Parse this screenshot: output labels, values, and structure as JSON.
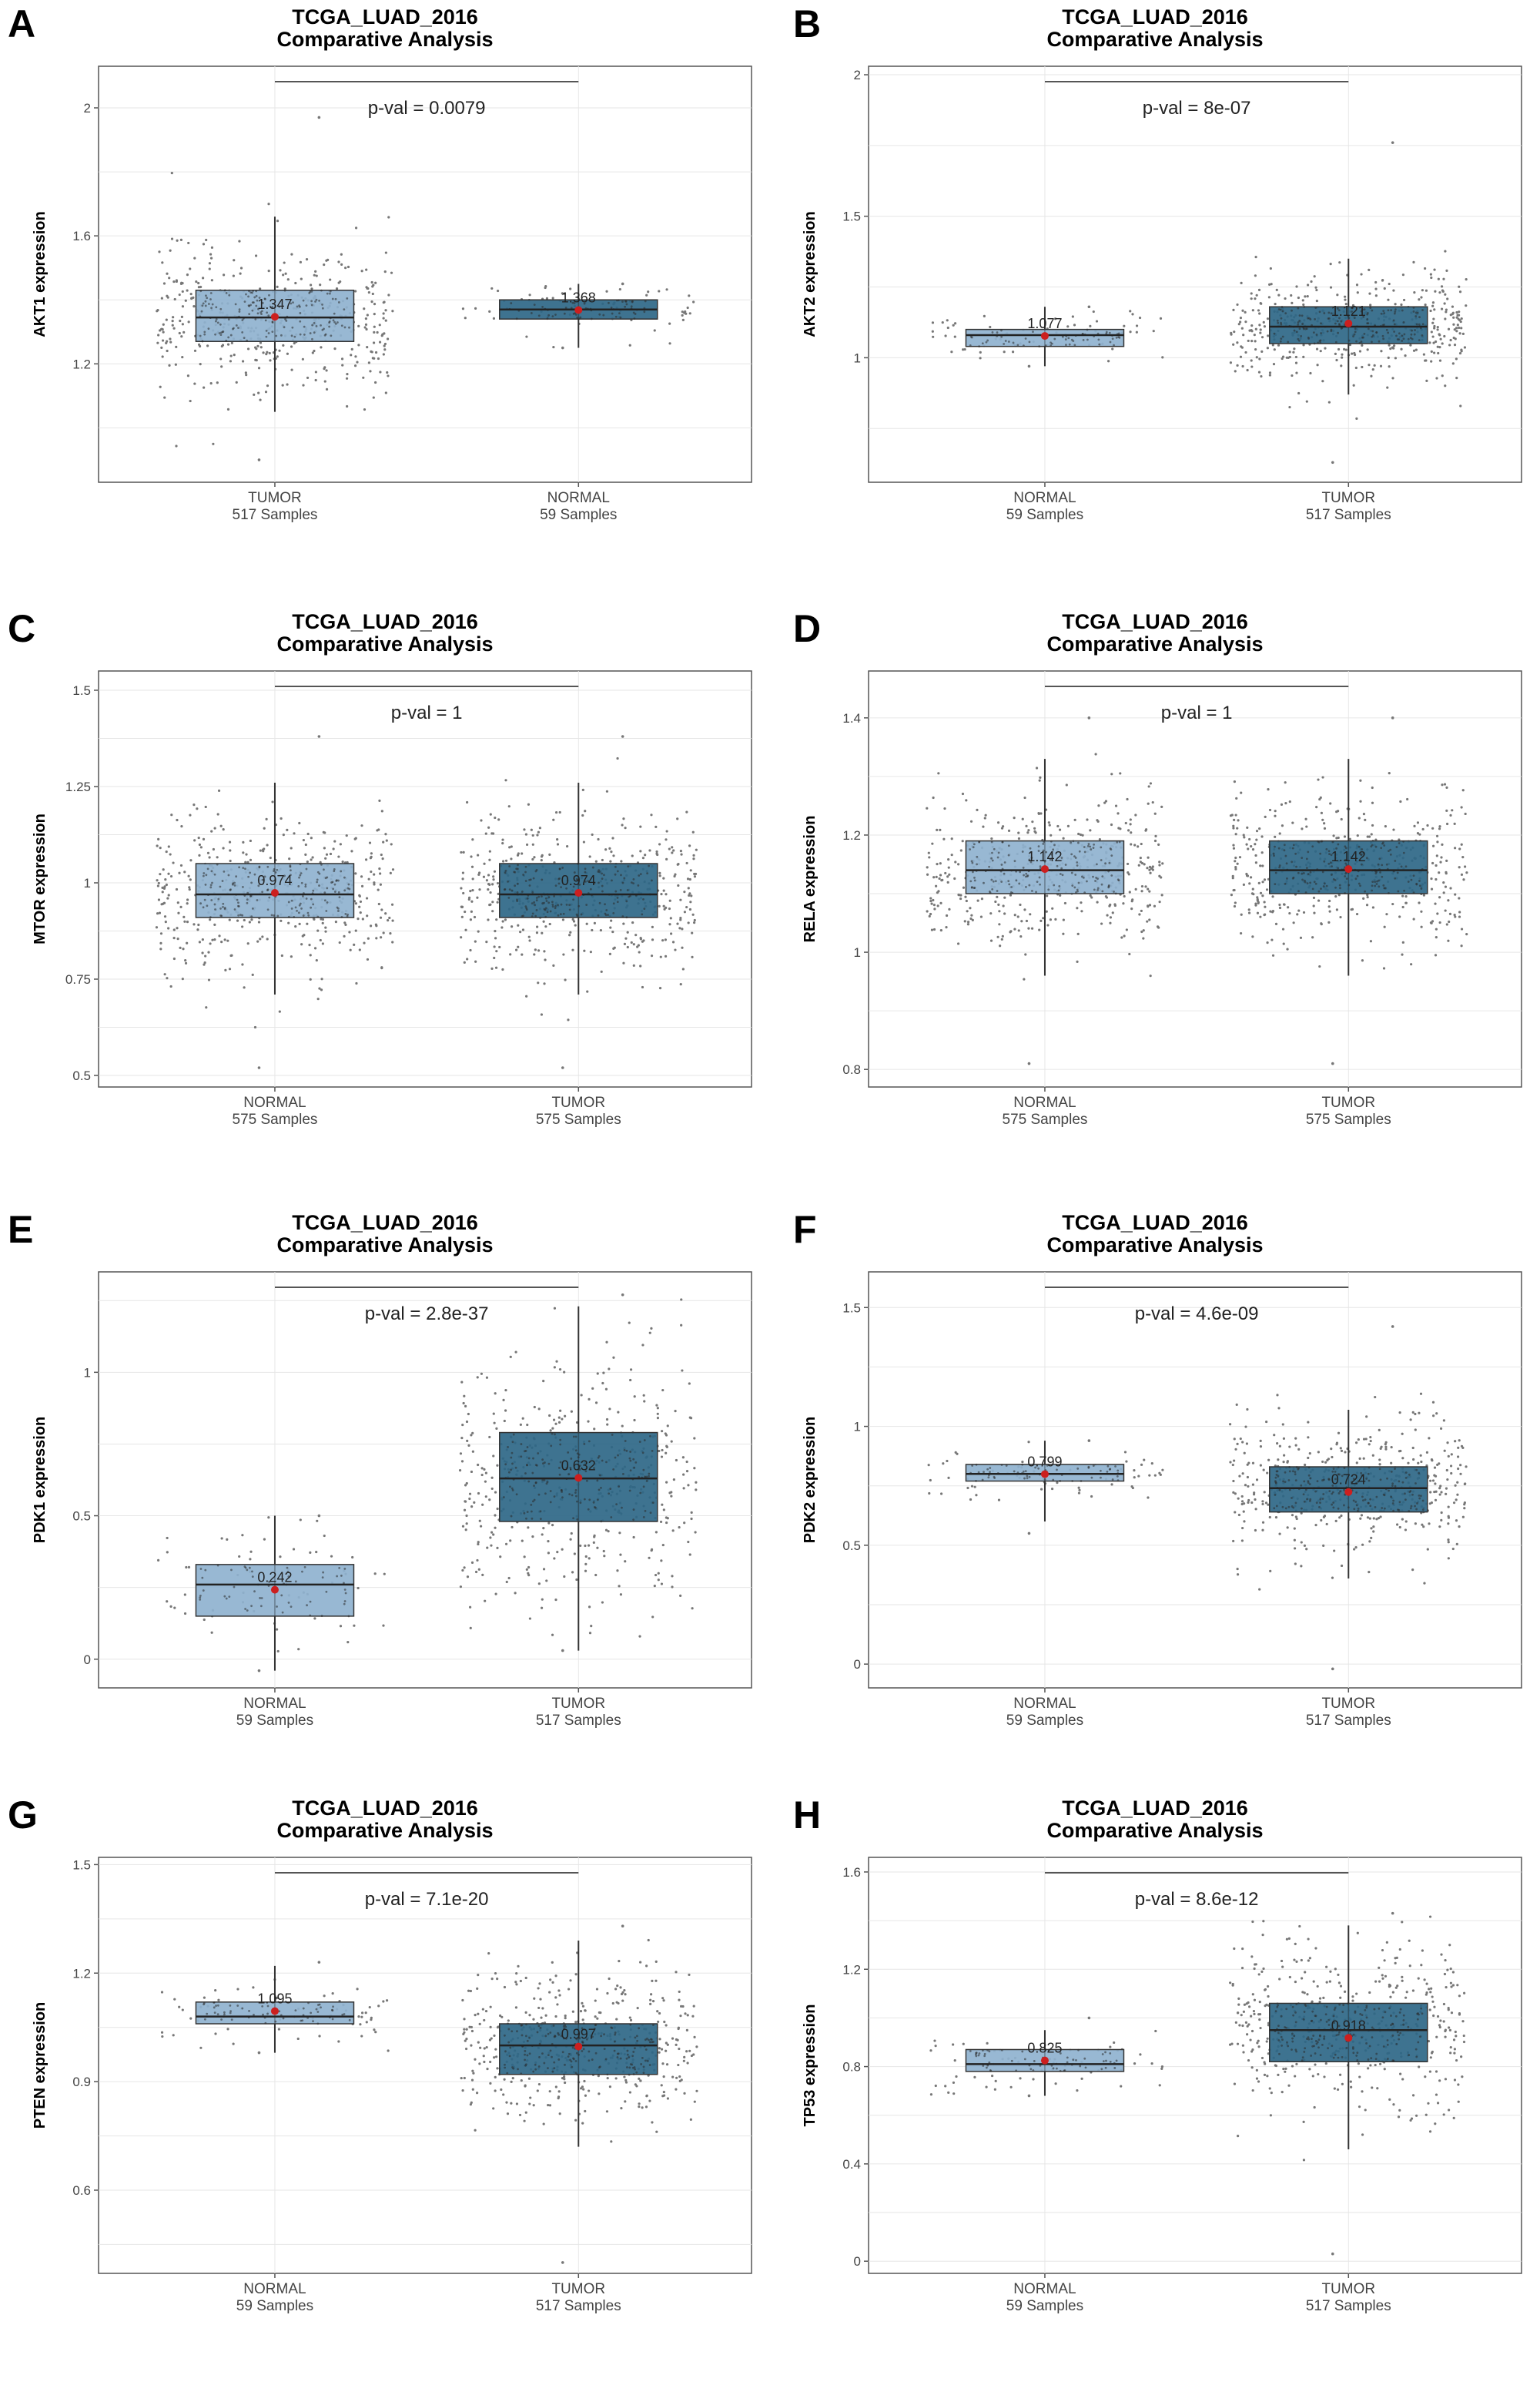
{
  "figure": {
    "panels": [
      {
        "letter": "A",
        "title": "TCGA_LUAD_2016",
        "subtitle": "Comparative Analysis",
        "pval": "p-val = 0.0079",
        "ylabel": "AKT1 expression",
        "groups": [
          "TUMOR",
          "NORMAL"
        ],
        "counts": [
          "517  Samples",
          "59  Samples"
        ]
      },
      {
        "letter": "B",
        "title": "TCGA_LUAD_2016",
        "subtitle": "Comparative Analysis",
        "pval": "p-val = 8e-07",
        "ylabel": "AKT2 expression",
        "groups": [
          "NORMAL",
          "TUMOR"
        ],
        "counts": [
          "59  Samples",
          "517  Samples"
        ]
      },
      {
        "letter": "C",
        "title": "TCGA_LUAD_2016",
        "subtitle": "Comparative Analysis",
        "pval": "p-val = 1",
        "ylabel": "MTOR expression",
        "groups": [
          "NORMAL",
          "TUMOR"
        ],
        "counts": [
          "575  Samples",
          "575  Samples"
        ]
      },
      {
        "letter": "D",
        "title": "TCGA_LUAD_2016",
        "subtitle": "Comparative Analysis",
        "pval": "p-val = 1",
        "ylabel": "RELA expression",
        "groups": [
          "NORMAL",
          "TUMOR"
        ],
        "counts": [
          "575  Samples",
          "575  Samples"
        ]
      },
      {
        "letter": "E",
        "title": "TCGA_LUAD_2016",
        "subtitle": "Comparative Analysis",
        "pval": "p-val = 2.8e-37",
        "ylabel": "PDK1 expression",
        "groups": [
          "NORMAL",
          "TUMOR"
        ],
        "counts": [
          "59  Samples",
          "517  Samples"
        ]
      },
      {
        "letter": "F",
        "title": "TCGA_LUAD_2016",
        "subtitle": "Comparative Analysis",
        "pval": "p-val = 4.6e-09",
        "ylabel": "PDK2 expression",
        "groups": [
          "NORMAL",
          "TUMOR"
        ],
        "counts": [
          "59  Samples",
          "517  Samples"
        ]
      },
      {
        "letter": "G",
        "title": "TCGA_LUAD_2016",
        "subtitle": "Comparative Analysis",
        "pval": "p-val = 7.1e-20",
        "ylabel": "PTEN expression",
        "groups": [
          "NORMAL",
          "TUMOR"
        ],
        "counts": [
          "59  Samples",
          "517  Samples"
        ]
      },
      {
        "letter": "H",
        "title": "TCGA_LUAD_2016",
        "subtitle": "Comparative Analysis",
        "pval": "p-val = 8.6e-12",
        "ylabel": "TP53 expression",
        "groups": [
          "NORMAL",
          "TUMOR"
        ],
        "counts": [
          "59  Samples",
          "517  Samples"
        ]
      }
    ]
  },
  "chart_data": [
    {
      "type": "box",
      "panel": "A",
      "ylabel": "AKT1 expression",
      "yticks": [
        1.2,
        1.6,
        2.0
      ],
      "ylim": [
        0.83,
        2.13
      ],
      "grid": true,
      "colors": [
        "#8fb2cf",
        "#2e6787"
      ],
      "boxes": [
        {
          "group": "TUMOR",
          "n": 517,
          "q1": 1.27,
          "median": 1.345,
          "q3": 1.43,
          "whisker_low": 1.05,
          "whisker_high": 1.66,
          "mean": 1.347,
          "mean_label": "1.347",
          "point_min": 0.9,
          "point_max": 1.97
        },
        {
          "group": "NORMAL",
          "n": 59,
          "q1": 1.34,
          "median": 1.37,
          "q3": 1.4,
          "whisker_low": 1.25,
          "whisker_high": 1.45,
          "mean": 1.368,
          "mean_label": "1.368",
          "point_min": 1.25,
          "point_max": 1.45
        }
      ]
    },
    {
      "type": "box",
      "panel": "B",
      "ylabel": "AKT2 expression",
      "yticks": [
        1.0,
        1.5,
        2.0
      ],
      "ylim": [
        0.56,
        2.03
      ],
      "grid": true,
      "colors": [
        "#8fb2cf",
        "#2e6787"
      ],
      "boxes": [
        {
          "group": "NORMAL",
          "n": 59,
          "q1": 1.04,
          "median": 1.08,
          "q3": 1.1,
          "whisker_low": 0.97,
          "whisker_high": 1.18,
          "mean": 1.077,
          "mean_label": "1.077",
          "point_min": 0.97,
          "point_max": 1.18
        },
        {
          "group": "TUMOR",
          "n": 517,
          "q1": 1.05,
          "median": 1.11,
          "q3": 1.18,
          "whisker_low": 0.87,
          "whisker_high": 1.35,
          "mean": 1.121,
          "mean_label": "1.121",
          "point_min": 0.63,
          "point_max": 1.76
        }
      ]
    },
    {
      "type": "box",
      "panel": "C",
      "ylabel": "MTOR expression",
      "yticks": [
        0.5,
        0.75,
        1.0,
        1.25,
        1.5
      ],
      "ylim": [
        0.47,
        1.55
      ],
      "grid": true,
      "colors": [
        "#8fb2cf",
        "#2e6787"
      ],
      "boxes": [
        {
          "group": "NORMAL",
          "n": 575,
          "q1": 0.91,
          "median": 0.97,
          "q3": 1.05,
          "whisker_low": 0.71,
          "whisker_high": 1.26,
          "mean": 0.974,
          "mean_label": "0.974",
          "point_min": 0.52,
          "point_max": 1.38
        },
        {
          "group": "TUMOR",
          "n": 575,
          "q1": 0.91,
          "median": 0.97,
          "q3": 1.05,
          "whisker_low": 0.71,
          "whisker_high": 1.26,
          "mean": 0.974,
          "mean_label": "0.974",
          "point_min": 0.52,
          "point_max": 1.38
        }
      ]
    },
    {
      "type": "box",
      "panel": "D",
      "ylabel": "RELA expression",
      "yticks": [
        0.8,
        1.0,
        1.2,
        1.4
      ],
      "ylim": [
        0.77,
        1.48
      ],
      "grid": true,
      "colors": [
        "#8fb2cf",
        "#2e6787"
      ],
      "boxes": [
        {
          "group": "NORMAL",
          "n": 575,
          "q1": 1.1,
          "median": 1.14,
          "q3": 1.19,
          "whisker_low": 0.96,
          "whisker_high": 1.33,
          "mean": 1.142,
          "mean_label": "1.142",
          "point_min": 0.81,
          "point_max": 1.4
        },
        {
          "group": "TUMOR",
          "n": 575,
          "q1": 1.1,
          "median": 1.14,
          "q3": 1.19,
          "whisker_low": 0.96,
          "whisker_high": 1.33,
          "mean": 1.142,
          "mean_label": "1.142",
          "point_min": 0.81,
          "point_max": 1.4
        }
      ]
    },
    {
      "type": "box",
      "panel": "E",
      "ylabel": "PDK1 expression",
      "yticks": [
        0.0,
        0.5,
        1.0
      ],
      "ylim": [
        -0.1,
        1.35
      ],
      "grid": true,
      "colors": [
        "#8fb2cf",
        "#2e6787"
      ],
      "boxes": [
        {
          "group": "NORMAL",
          "n": 59,
          "q1": 0.15,
          "median": 0.26,
          "q3": 0.33,
          "whisker_low": -0.04,
          "whisker_high": 0.5,
          "mean": 0.242,
          "mean_label": "0.242",
          "point_min": -0.04,
          "point_max": 0.5
        },
        {
          "group": "TUMOR",
          "n": 517,
          "q1": 0.48,
          "median": 0.63,
          "q3": 0.79,
          "whisker_low": 0.03,
          "whisker_high": 1.23,
          "mean": 0.632,
          "mean_label": "0.632",
          "point_min": 0.03,
          "point_max": 1.27
        }
      ]
    },
    {
      "type": "box",
      "panel": "F",
      "ylabel": "PDK2 expression",
      "yticks": [
        0.0,
        0.5,
        1.0,
        1.5
      ],
      "ylim": [
        -0.1,
        1.65
      ],
      "grid": true,
      "colors": [
        "#8fb2cf",
        "#2e6787"
      ],
      "boxes": [
        {
          "group": "NORMAL",
          "n": 59,
          "q1": 0.77,
          "median": 0.8,
          "q3": 0.84,
          "whisker_low": 0.6,
          "whisker_high": 0.94,
          "mean": 0.799,
          "mean_label": "0.799",
          "point_min": 0.55,
          "point_max": 0.94
        },
        {
          "group": "TUMOR",
          "n": 517,
          "q1": 0.64,
          "median": 0.74,
          "q3": 0.83,
          "whisker_low": 0.36,
          "whisker_high": 1.07,
          "mean": 0.724,
          "mean_label": "0.724",
          "point_min": -0.02,
          "point_max": 1.42
        }
      ]
    },
    {
      "type": "box",
      "panel": "G",
      "ylabel": "PTEN expression",
      "yticks": [
        0.6,
        0.9,
        1.2,
        1.5
      ],
      "ylim": [
        0.37,
        1.52
      ],
      "grid": true,
      "colors": [
        "#8fb2cf",
        "#2e6787"
      ],
      "boxes": [
        {
          "group": "NORMAL",
          "n": 59,
          "q1": 1.06,
          "median": 1.08,
          "q3": 1.12,
          "whisker_low": 0.98,
          "whisker_high": 1.22,
          "mean": 1.095,
          "mean_label": "1.095",
          "point_min": 0.98,
          "point_max": 1.23
        },
        {
          "group": "TUMOR",
          "n": 517,
          "q1": 0.92,
          "median": 1.0,
          "q3": 1.06,
          "whisker_low": 0.72,
          "whisker_high": 1.29,
          "mean": 0.997,
          "mean_label": "0.997",
          "point_min": 0.4,
          "point_max": 1.33
        }
      ]
    },
    {
      "type": "box",
      "panel": "H",
      "ylabel": "TP53 expression",
      "yticks": [
        0.0,
        0.4,
        0.8,
        1.2,
        1.6
      ],
      "ylim": [
        -0.05,
        1.66
      ],
      "grid": true,
      "colors": [
        "#8fb2cf",
        "#2e6787"
      ],
      "boxes": [
        {
          "group": "NORMAL",
          "n": 59,
          "q1": 0.78,
          "median": 0.81,
          "q3": 0.87,
          "whisker_low": 0.68,
          "whisker_high": 0.95,
          "mean": 0.825,
          "mean_label": "0.825",
          "point_min": 0.68,
          "point_max": 1.0
        },
        {
          "group": "TUMOR",
          "n": 517,
          "q1": 0.82,
          "median": 0.95,
          "q3": 1.06,
          "whisker_low": 0.46,
          "whisker_high": 1.38,
          "mean": 0.918,
          "mean_label": "0.918",
          "point_min": 0.03,
          "point_max": 1.43
        }
      ]
    }
  ]
}
